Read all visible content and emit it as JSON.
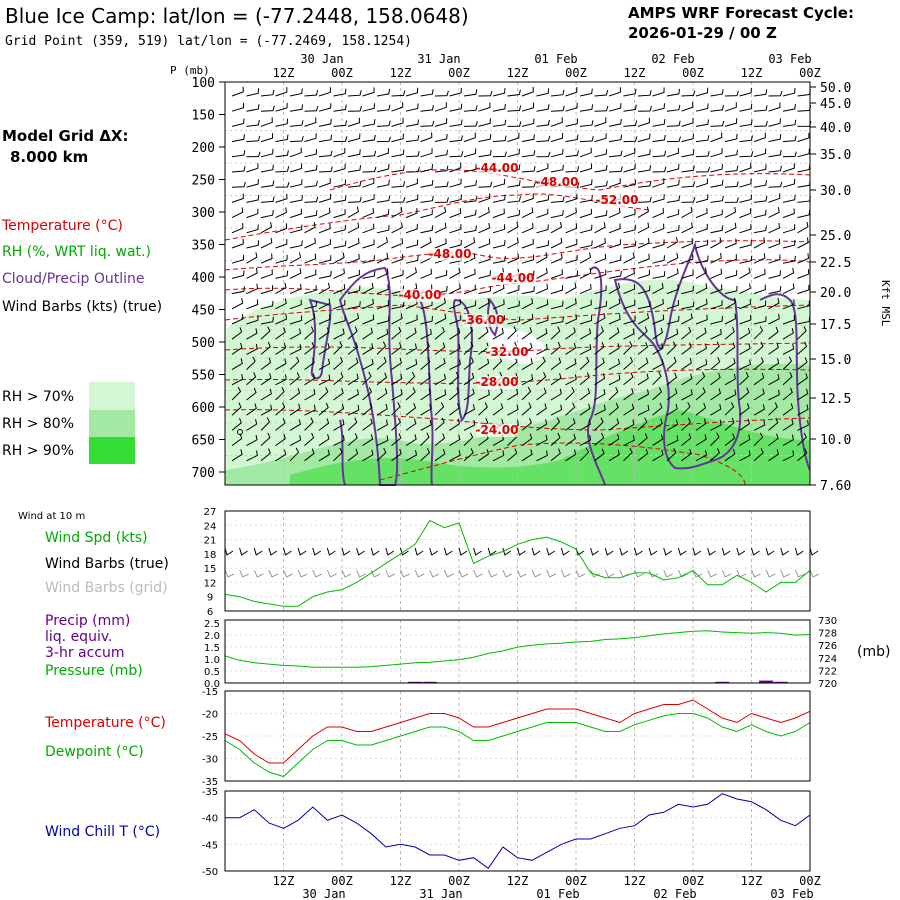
{
  "title": {
    "main": "Blue Ice Camp:  lat/lon = (-77.2448, 158.0648)",
    "grid": "Grid Point (359, 519) lat/lon = (-77.2469, 158.1254)",
    "cycle_label": "AMPS WRF Forecast Cycle:",
    "cycle_value": "2026-01-29 / 00  Z"
  },
  "model_grid": {
    "label": "Model Grid ΔX:",
    "value": "8.000 km"
  },
  "time_axis": {
    "top_dates": [
      "30 Jan",
      "31 Jan",
      "01 Feb",
      "02 Feb",
      "03 Feb"
    ],
    "bottom_dates": [
      "30 Jan",
      "31 Jan",
      "01 Feb",
      "02 Feb",
      "03 Feb"
    ],
    "tick_labels": [
      "12Z",
      "00Z",
      "12Z",
      "00Z",
      "12Z",
      "00Z",
      "12Z",
      "00Z",
      "12Z",
      "00Z"
    ]
  },
  "upper": {
    "p_axis_label": "P (mb)",
    "kft_axis_label": "Kft MSL",
    "pressure_ticks": [
      "100",
      "150",
      "200",
      "250",
      "300",
      "350",
      "400",
      "450",
      "500",
      "550",
      "600",
      "650",
      "700"
    ],
    "kft_ticks": [
      "50.0",
      "45.0",
      "40.0",
      "35.0",
      "30.0",
      "25.0",
      "22.5",
      "20.0",
      "17.5",
      "15.0",
      "12.5",
      "10.0",
      "7.60"
    ],
    "legend": {
      "temperature": "Temperature (°C)",
      "rh": "RH (%, WRT liq. wat.)",
      "cloud": "Cloud/Precip Outline",
      "wind": "Wind Barbs (kts) (true)"
    },
    "rh_legend": [
      "RH > 70%",
      "RH > 80%",
      "RH > 90%"
    ],
    "rh_colors": [
      "#d2f7d2",
      "#a3e8a3",
      "#33dd33"
    ],
    "isotherm_labels": [
      "-44.00",
      "-48.00",
      "-52.00",
      "-48.00",
      "-44.00",
      "-40.00",
      "-36.00",
      "-32.00",
      "-28.00",
      "-24.00"
    ]
  },
  "wind_panel": {
    "caption": "Wind at 10 m",
    "labels": [
      "Wind Spd (kts)",
      "Wind Barbs (true)",
      "Wind Barbs (grid)"
    ],
    "y_ticks": [
      "27",
      "24",
      "21",
      "18",
      "15",
      "12",
      "9",
      "6"
    ]
  },
  "precip_panel": {
    "labels": [
      "Precip (mm)",
      "liq. equiv.",
      "3-hr accum",
      "Pressure (mb)"
    ],
    "left_ticks": [
      "2.5",
      "2.0",
      "1.5",
      "1.0",
      "0.5",
      "0.0"
    ],
    "right_ticks": [
      "730",
      "728",
      "726",
      "724",
      "722",
      "720"
    ],
    "unit_right": "(mb)"
  },
  "temp_panel": {
    "labels": [
      "Temperature (°C)",
      "Dewpoint (°C)"
    ],
    "y_ticks": [
      "-15",
      "-20",
      "-25",
      "-30",
      "-35"
    ]
  },
  "chill_panel": {
    "labels": [
      "Wind Chill T (°C)"
    ],
    "y_ticks": [
      "-35",
      "-40",
      "-45",
      "-50"
    ]
  },
  "colors": {
    "temperature": "#dd0000",
    "dewpoint": "#00bb00",
    "wind_speed": "#00bb00",
    "pressure": "#00bb00",
    "precip": "#660088",
    "wind_chill": "#0000aa",
    "cloud": "#663399",
    "grid_barb": "#999999"
  },
  "chart_data": [
    {
      "type": "line",
      "title": "Wind at 10 m",
      "x": [
        "00Z 29 Jan",
        "03Z",
        "06Z",
        "09Z",
        "12Z",
        "15Z",
        "18Z",
        "21Z",
        "00Z 30 Jan",
        "03Z",
        "06Z",
        "09Z",
        "12Z",
        "15Z",
        "18Z",
        "21Z",
        "00Z 31 Jan",
        "03Z",
        "06Z",
        "09Z",
        "12Z",
        "15Z",
        "18Z",
        "21Z",
        "00Z 01 Feb",
        "03Z",
        "06Z",
        "09Z",
        "12Z",
        "15Z",
        "18Z",
        "21Z",
        "00Z 02 Feb",
        "03Z",
        "06Z",
        "09Z",
        "12Z",
        "15Z",
        "18Z",
        "21Z",
        "00Z 03 Feb"
      ],
      "series": [
        {
          "name": "Wind Spd (kts)",
          "values": [
            9.5,
            9,
            8,
            7.5,
            7,
            7,
            9,
            10,
            10.5,
            12,
            14,
            16,
            18,
            20,
            25,
            23.5,
            24.5,
            16,
            17.5,
            18.5,
            20,
            21,
            21.5,
            20.5,
            19,
            14,
            13,
            13,
            14,
            14,
            12.5,
            13,
            14.5,
            11.5,
            11.5,
            13.5,
            12,
            10,
            12,
            12,
            14.5
          ]
        }
      ],
      "ylim": [
        6,
        27
      ]
    },
    {
      "type": "line",
      "title": "Precip / Pressure",
      "x": [
        "00Z 29 Jan",
        "03Z",
        "06Z",
        "09Z",
        "12Z",
        "15Z",
        "18Z",
        "21Z",
        "00Z 30 Jan",
        "03Z",
        "06Z",
        "09Z",
        "12Z",
        "15Z",
        "18Z",
        "21Z",
        "00Z 31 Jan",
        "03Z",
        "06Z",
        "09Z",
        "12Z",
        "15Z",
        "18Z",
        "21Z",
        "00Z 01 Feb",
        "03Z",
        "06Z",
        "09Z",
        "12Z",
        "15Z",
        "18Z",
        "21Z",
        "00Z 02 Feb",
        "03Z",
        "06Z",
        "09Z",
        "12Z",
        "15Z",
        "18Z",
        "21Z",
        "00Z 03 Feb"
      ],
      "series": [
        {
          "name": "Precip (mm)",
          "values": [
            0,
            0,
            0,
            0,
            0,
            0,
            0,
            0,
            0,
            0,
            0,
            0,
            0,
            0.05,
            0.05,
            0,
            0,
            0,
            0,
            0,
            0,
            0,
            0,
            0,
            0,
            0,
            0,
            0,
            0,
            0,
            0,
            0,
            0,
            0,
            0.05,
            0,
            0,
            0.1,
            0.05,
            0,
            0
          ]
        },
        {
          "name": "Pressure (mb)",
          "values": [
            724.3,
            723.6,
            723.2,
            723,
            722.8,
            722.7,
            722.5,
            722.5,
            722.5,
            722.5,
            722.6,
            722.8,
            723,
            723.2,
            723.3,
            723.5,
            723.7,
            724.1,
            724.7,
            725.1,
            725.7,
            726,
            726.2,
            726.3,
            726.5,
            726.6,
            726.9,
            727,
            727.2,
            727.5,
            727.8,
            728,
            728.2,
            728.3,
            728.1,
            728,
            727.9,
            728,
            727.9,
            727.6,
            727.7
          ]
        }
      ],
      "ylim": [
        0,
        2.5
      ],
      "y2lim": [
        720,
        730
      ]
    },
    {
      "type": "line",
      "title": "Temperature / Dewpoint",
      "x": [
        "00Z 29 Jan",
        "03Z",
        "06Z",
        "09Z",
        "12Z",
        "15Z",
        "18Z",
        "21Z",
        "00Z 30 Jan",
        "03Z",
        "06Z",
        "09Z",
        "12Z",
        "15Z",
        "18Z",
        "21Z",
        "00Z 31 Jan",
        "03Z",
        "06Z",
        "09Z",
        "12Z",
        "15Z",
        "18Z",
        "21Z",
        "00Z 01 Feb",
        "03Z",
        "06Z",
        "09Z",
        "12Z",
        "15Z",
        "18Z",
        "21Z",
        "00Z 02 Feb",
        "03Z",
        "06Z",
        "09Z",
        "12Z",
        "15Z",
        "18Z",
        "21Z",
        "00Z 03 Feb"
      ],
      "series": [
        {
          "name": "Temperature (°C)",
          "values": [
            -24.5,
            -26,
            -29,
            -31,
            -31,
            -28,
            -25,
            -23,
            -23,
            -24,
            -24,
            -23,
            -22,
            -21,
            -20,
            -20,
            -21,
            -23,
            -23,
            -22,
            -21,
            -20,
            -19,
            -19,
            -19,
            -20,
            -21,
            -22,
            -20,
            -19,
            -18,
            -18,
            -17,
            -19,
            -21,
            -22,
            -20,
            -21,
            -22,
            -21,
            -19.5
          ]
        },
        {
          "name": "Dewpoint (°C)",
          "values": [
            -26,
            -28,
            -31,
            -33,
            -34,
            -31,
            -28,
            -26,
            -26,
            -27,
            -27,
            -26,
            -25,
            -24,
            -23,
            -23,
            -24,
            -26,
            -26,
            -25,
            -24,
            -23,
            -22,
            -22,
            -22,
            -23,
            -24,
            -24,
            -22.5,
            -21.5,
            -20.5,
            -20,
            -20,
            -21,
            -23,
            -24,
            -22.5,
            -24,
            -25,
            -24,
            -22
          ]
        }
      ],
      "ylim": [
        -35,
        -15
      ]
    },
    {
      "type": "line",
      "title": "Wind Chill T",
      "x": [
        "00Z 29 Jan",
        "03Z",
        "06Z",
        "09Z",
        "12Z",
        "15Z",
        "18Z",
        "21Z",
        "00Z 30 Jan",
        "03Z",
        "06Z",
        "09Z",
        "12Z",
        "15Z",
        "18Z",
        "21Z",
        "00Z 31 Jan",
        "03Z",
        "06Z",
        "09Z",
        "12Z",
        "15Z",
        "18Z",
        "21Z",
        "00Z 01 Feb",
        "03Z",
        "06Z",
        "09Z",
        "12Z",
        "15Z",
        "18Z",
        "21Z",
        "00Z 02 Feb",
        "03Z",
        "06Z",
        "09Z",
        "12Z",
        "15Z",
        "18Z",
        "21Z",
        "00Z 03 Feb"
      ],
      "series": [
        {
          "name": "Wind Chill T (°C)",
          "values": [
            -40,
            -40,
            -38.5,
            -41,
            -42,
            -40.5,
            -38,
            -40.5,
            -39.5,
            -41,
            -43,
            -45.5,
            -45,
            -45.5,
            -47,
            -47,
            -48,
            -47.5,
            -49.5,
            -45.5,
            -47.5,
            -48,
            -46.5,
            -45,
            -44,
            -44,
            -43,
            -42,
            -41.5,
            -39.5,
            -39,
            -37.5,
            -38,
            -37.5,
            -35.5,
            -36.5,
            -37,
            -38.5,
            -40.5,
            -41.5,
            -39.5
          ]
        }
      ],
      "ylim": [
        -50,
        -35
      ]
    }
  ]
}
